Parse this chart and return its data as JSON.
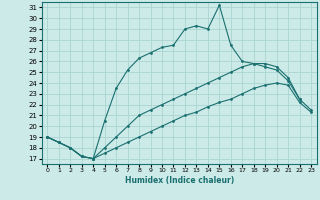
{
  "xlabel": "Humidex (Indice chaleur)",
  "bg_color": "#cceae7",
  "grid_color": "#aad4d0",
  "line_color": "#1a7070",
  "xlim": [
    -0.5,
    23.5
  ],
  "ylim": [
    16.5,
    31.5
  ],
  "xticks": [
    0,
    1,
    2,
    3,
    4,
    5,
    6,
    7,
    8,
    9,
    10,
    11,
    12,
    13,
    14,
    15,
    16,
    17,
    18,
    19,
    20,
    21,
    22,
    23
  ],
  "yticks": [
    17,
    18,
    19,
    20,
    21,
    22,
    23,
    24,
    25,
    26,
    27,
    28,
    29,
    30,
    31
  ],
  "line1_x": [
    0,
    1,
    2,
    3,
    4,
    5,
    6,
    7,
    8,
    9,
    10,
    11,
    12,
    13,
    14,
    15,
    16,
    17,
    18,
    19,
    20,
    21,
    22
  ],
  "line1_y": [
    19,
    18.5,
    18,
    17.2,
    17.0,
    20.5,
    23.5,
    25.2,
    26.3,
    26.8,
    27.3,
    27.5,
    29.0,
    29.3,
    29.0,
    31.2,
    27.5,
    26.0,
    25.8,
    25.5,
    25.2,
    24.2,
    22.5
  ],
  "line2_x": [
    0,
    1,
    2,
    3,
    4,
    5,
    6,
    7,
    8,
    9,
    10,
    11,
    12,
    13,
    14,
    15,
    16,
    17,
    18,
    19,
    20,
    21,
    22,
    23
  ],
  "line2_y": [
    19,
    18.5,
    18,
    17.2,
    17.0,
    18.0,
    19.0,
    20.0,
    21.0,
    21.5,
    22.0,
    22.5,
    23.0,
    23.5,
    24.0,
    24.5,
    25.0,
    25.5,
    25.8,
    25.8,
    25.5,
    24.5,
    22.5,
    21.5
  ],
  "line3_x": [
    0,
    1,
    2,
    3,
    4,
    5,
    6,
    7,
    8,
    9,
    10,
    11,
    12,
    13,
    14,
    15,
    16,
    17,
    18,
    19,
    20,
    21,
    22,
    23
  ],
  "line3_y": [
    19,
    18.5,
    18,
    17.2,
    17.0,
    17.5,
    18.0,
    18.5,
    19.0,
    19.5,
    20.0,
    20.5,
    21.0,
    21.3,
    21.8,
    22.2,
    22.5,
    23.0,
    23.5,
    23.8,
    24.0,
    23.8,
    22.2,
    21.3
  ]
}
